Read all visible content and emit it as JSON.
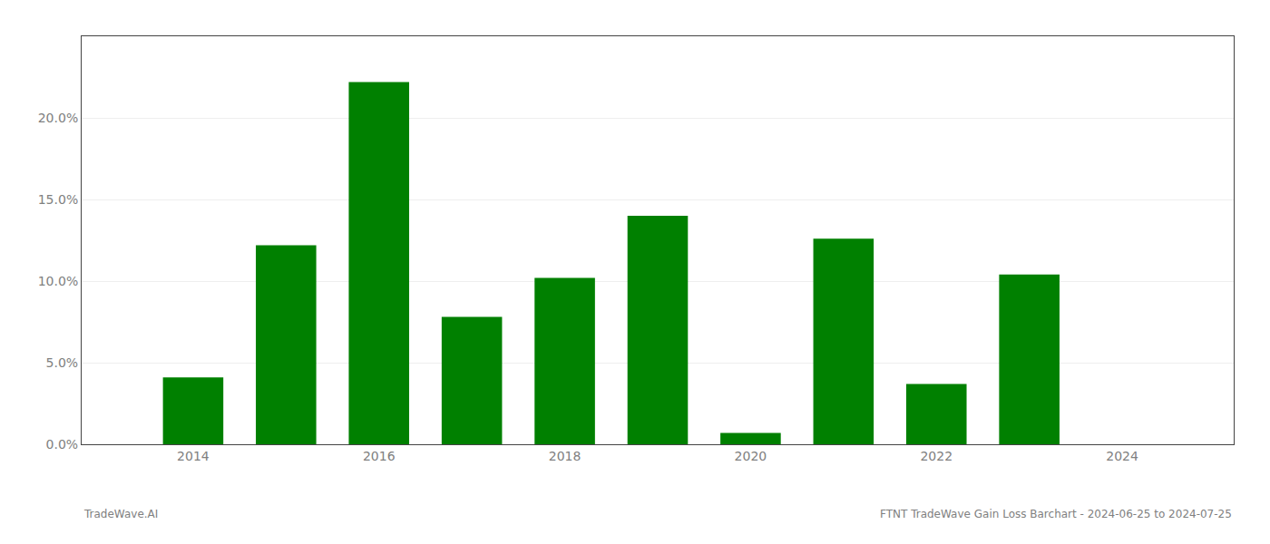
{
  "chart_data": {
    "type": "bar",
    "x": [
      2014,
      2015,
      2016,
      2017,
      2018,
      2019,
      2020,
      2021,
      2022,
      2023
    ],
    "values": [
      0.041,
      0.122,
      0.222,
      0.078,
      0.102,
      0.14,
      0.007,
      0.126,
      0.037,
      0.104
    ],
    "color": "#008000",
    "xlim": [
      2012.8,
      2025.2
    ],
    "xticks": [
      2014,
      2016,
      2018,
      2020,
      2022,
      2024
    ],
    "ylim": [
      0,
      0.25
    ],
    "yticks": [
      {
        "value": 0.0,
        "label": "0.0%"
      },
      {
        "value": 0.05,
        "label": "5.0%"
      },
      {
        "value": 0.1,
        "label": "10.0%"
      },
      {
        "value": 0.15,
        "label": "15.0%"
      },
      {
        "value": 0.2,
        "label": "20.0%"
      }
    ],
    "grid": true,
    "annotations": [
      "TradeWave.AI",
      "FTNT TradeWave Gain Loss Barchart - 2024-06-25 to 2024-07-25"
    ]
  }
}
